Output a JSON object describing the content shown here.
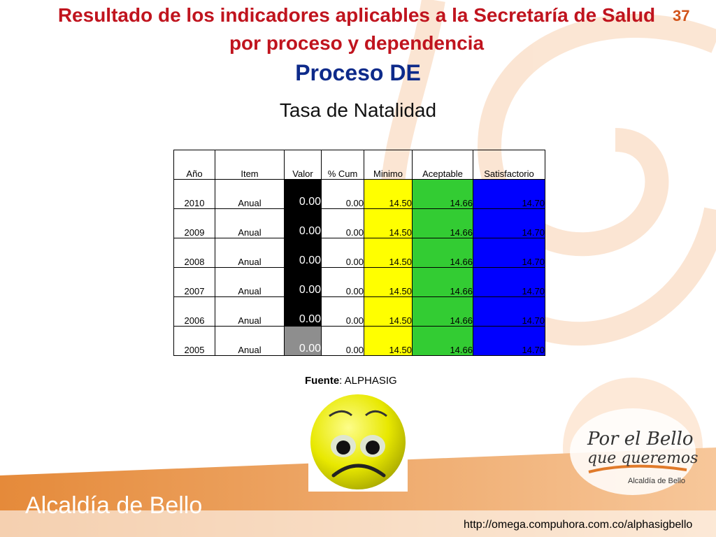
{
  "header": {
    "title": "Resultado de los indicadores aplicables a la Secretaría de Salud  por proceso y dependencia",
    "slide_number": "37",
    "process": "Proceso DE",
    "subtitle": "Tasa de Natalidad"
  },
  "table": {
    "columns": [
      "Año",
      "Item",
      "Valor",
      "% Cum",
      "Minimo",
      "Aceptable",
      "Satisfactorio"
    ],
    "rows": [
      {
        "year": "2010",
        "item": "Anual",
        "valor": "0.00",
        "cum": "0.00",
        "minimo": "14.50",
        "aceptable": "14.66",
        "satisfactorio": "14.70"
      },
      {
        "year": "2009",
        "item": "Anual",
        "valor": "0.00",
        "cum": "0.00",
        "minimo": "14.50",
        "aceptable": "14.66",
        "satisfactorio": "14.70"
      },
      {
        "year": "2008",
        "item": "Anual",
        "valor": "0.00",
        "cum": "0.00",
        "minimo": "14.50",
        "aceptable": "14.66",
        "satisfactorio": "14.70"
      },
      {
        "year": "2007",
        "item": "Anual",
        "valor": "0.00",
        "cum": "0.00",
        "minimo": "14.50",
        "aceptable": "14.66",
        "satisfactorio": "14.70"
      },
      {
        "year": "2006",
        "item": "Anual",
        "valor": "0.00",
        "cum": "0.00",
        "minimo": "14.50",
        "aceptable": "14.66",
        "satisfactorio": "14.70"
      },
      {
        "year": "2005",
        "item": "Anual",
        "valor": "0.00",
        "cum": "0.00",
        "minimo": "14.50",
        "aceptable": "14.66",
        "satisfactorio": "14.70"
      }
    ]
  },
  "source": {
    "label": "Fuente",
    "value": ": ALPHASIG"
  },
  "footer": {
    "brand": "Alcaldía de Bello",
    "url": "http://omega.compuhora.com.co/alphasigbello"
  },
  "logo": {
    "line1": "Por el Bello",
    "line2": "que queremos",
    "line3": "Alcaldía de Bello"
  },
  "colors": {
    "title": "#c0141e",
    "process": "#0d2a8a",
    "minimo": "#ffff00",
    "aceptable": "#33cc33",
    "satisfactorio": "#0000ff"
  },
  "icons": {
    "face": "sad-face-icon"
  }
}
